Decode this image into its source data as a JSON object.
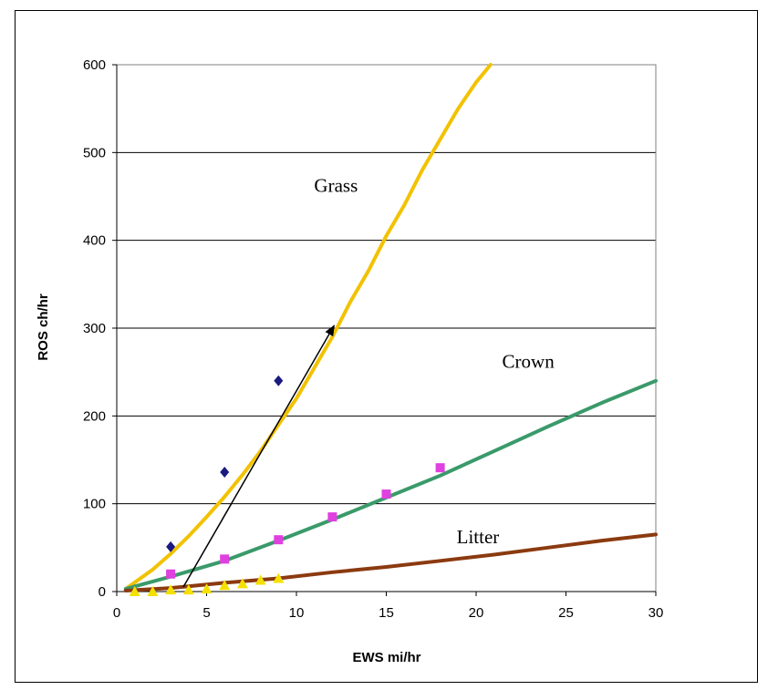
{
  "chart_data": {
    "type": "line",
    "title": "",
    "xlabel": "EWS mi/hr",
    "ylabel": "ROS ch/hr",
    "xlim": [
      0,
      30
    ],
    "ylim": [
      0,
      600
    ],
    "x_ticks": [
      "0",
      "5",
      "10",
      "15",
      "20",
      "25",
      "30"
    ],
    "y_ticks": [
      "0",
      "100",
      "200",
      "300",
      "400",
      "500",
      "600"
    ],
    "grid": "horizontal",
    "legend": "none",
    "series": [
      {
        "name": "Grass",
        "kind": "line",
        "color": "#F2C200",
        "x": [
          0.5,
          2,
          3,
          4,
          5,
          6,
          7,
          8,
          9,
          10,
          11,
          12,
          13,
          14,
          15,
          16,
          17,
          18,
          19,
          20,
          20.8
        ],
        "y": [
          3,
          25,
          43,
          63,
          85,
          108,
          133,
          160,
          190,
          220,
          255,
          290,
          330,
          365,
          405,
          440,
          480,
          515,
          550,
          580,
          600
        ]
      },
      {
        "name": "Crown",
        "kind": "line",
        "color": "#3A9A6A",
        "x": [
          0.5,
          3,
          6,
          9,
          12,
          15,
          18,
          21,
          24,
          27,
          30
        ],
        "y": [
          3,
          17,
          35,
          58,
          82,
          107,
          132,
          160,
          188,
          215,
          240
        ]
      },
      {
        "name": "Litter",
        "kind": "line",
        "color": "#8B3A10",
        "x": [
          0.5,
          3,
          6,
          9,
          12,
          15,
          18,
          21,
          24,
          27,
          30
        ],
        "y": [
          1,
          4,
          10,
          15,
          22,
          28,
          35,
          42,
          50,
          58,
          65
        ]
      },
      {
        "name": "",
        "kind": "points",
        "marker": "diamond",
        "color": "#1A1A80",
        "x": [
          3,
          6,
          9
        ],
        "y": [
          51,
          136,
          240
        ]
      },
      {
        "name": "",
        "kind": "points",
        "marker": "square",
        "color": "#E040E0",
        "x": [
          3,
          6,
          9,
          12,
          15,
          18
        ],
        "y": [
          20,
          37,
          59,
          85,
          111,
          141
        ]
      },
      {
        "name": "",
        "kind": "points",
        "marker": "triangle",
        "color": "#F5E000",
        "x": [
          1,
          2,
          3,
          4,
          5,
          6,
          7,
          8,
          9
        ],
        "y": [
          0,
          0,
          2,
          2,
          3,
          7,
          9,
          13,
          15
        ]
      }
    ],
    "annotations": [
      {
        "type": "arrow",
        "from": [
          3.7,
          5
        ],
        "to": [
          12.1,
          303
        ],
        "color": "#000000"
      }
    ],
    "series_labels": [
      {
        "text": "Grass",
        "x": 12.2,
        "y": 455
      },
      {
        "text": "Crown",
        "x": 22.9,
        "y": 255
      },
      {
        "text": "Litter",
        "x": 20.1,
        "y": 55
      }
    ]
  }
}
